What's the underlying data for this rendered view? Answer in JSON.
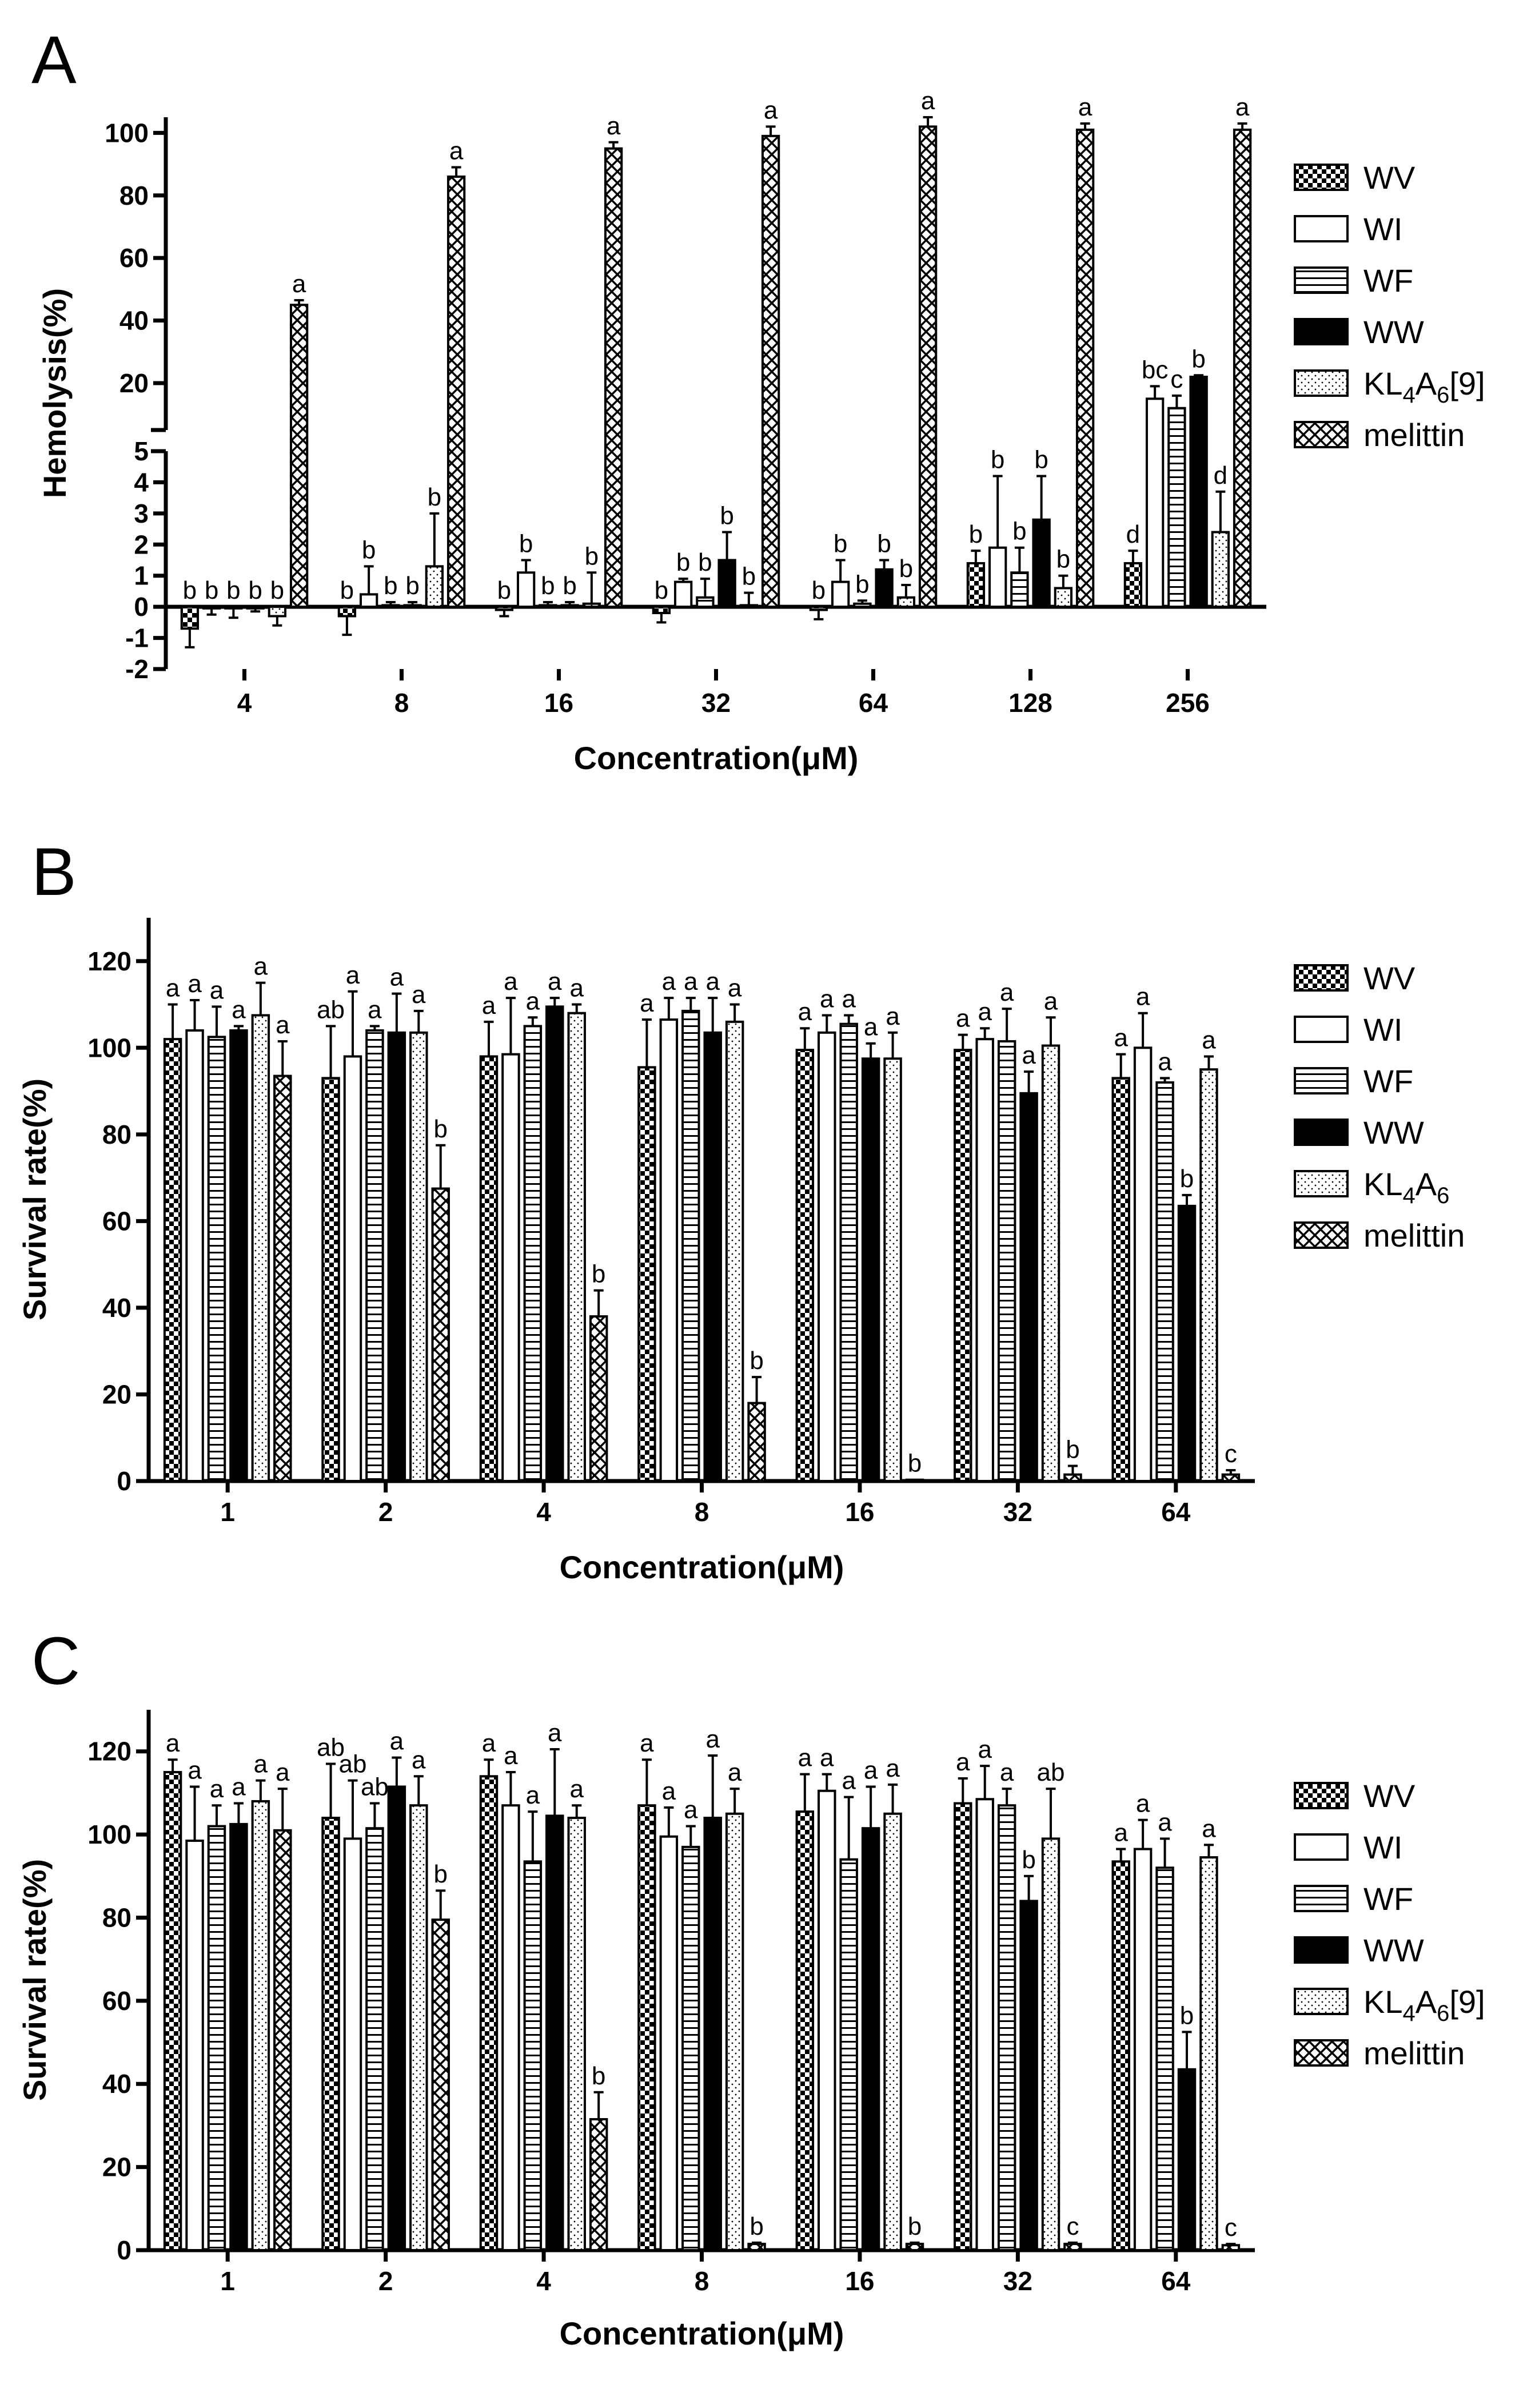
{
  "chart_data": [
    {
      "type": "bar",
      "panel": "A",
      "title": "",
      "xlabel": "Concentration(μM)",
      "ylabel": "Hemolysis(%)",
      "categories": [
        "4",
        "8",
        "16",
        "32",
        "64",
        "128",
        "256"
      ],
      "ylim": [
        -2,
        105
      ],
      "broken_axis": {
        "lower": [
          -2,
          5
        ],
        "upper": [
          5,
          105
        ]
      },
      "lower_ticks": [
        "-2",
        "-1",
        "0",
        "1",
        "2",
        "3",
        "4",
        "5"
      ],
      "upper_ticks": [
        "20",
        "40",
        "60",
        "80",
        "100"
      ],
      "legend_position": "right",
      "series": [
        {
          "name": "WV",
          "pattern": "checker",
          "values": [
            -0.7,
            -0.3,
            -0.1,
            -0.2,
            -0.1,
            1.4,
            1.4
          ],
          "errors": [
            0.6,
            0.6,
            0.2,
            0.3,
            0.3,
            0.4,
            0.4
          ],
          "labels": [
            "b",
            "b",
            "b",
            "b",
            "b",
            "b",
            "d"
          ]
        },
        {
          "name": "WI",
          "pattern": "open",
          "values": [
            -0.05,
            0.4,
            1.1,
            0.8,
            0.8,
            1.9,
            15
          ],
          "errors": [
            0.2,
            0.9,
            0.4,
            0.1,
            0.7,
            2.3,
            4
          ],
          "labels": [
            "b",
            "b",
            "b",
            "b",
            "b",
            "b",
            "bc"
          ]
        },
        {
          "name": "WF",
          "pattern": "hlines",
          "values": [
            -0.05,
            0.05,
            0.05,
            0.3,
            0.1,
            1.1,
            12
          ],
          "errors": [
            0.3,
            0.1,
            0.1,
            0.6,
            0.1,
            0.8,
            4
          ],
          "labels": [
            "b",
            "b",
            "b",
            "b",
            "b",
            "b",
            "c"
          ]
        },
        {
          "name": "WW",
          "pattern": "solid",
          "values": [
            -0.05,
            0.05,
            0.05,
            1.5,
            1.2,
            2.8,
            22
          ],
          "errors": [
            0.1,
            0.1,
            0.1,
            0.9,
            0.3,
            1.4,
            0.5
          ],
          "labels": [
            "b",
            "b",
            "b",
            "b",
            "b",
            "b",
            "b"
          ]
        },
        {
          "name": "KL4A6[9]",
          "pattern": "dots",
          "values": [
            -0.3,
            1.3,
            0.1,
            0.05,
            0.3,
            0.6,
            2.4
          ],
          "errors": [
            0.3,
            1.7,
            1.0,
            0.4,
            0.4,
            0.4,
            1.3
          ],
          "labels": [
            "b",
            "b",
            "b",
            "b",
            "b",
            "b",
            "d"
          ]
        },
        {
          "name": "melittin",
          "pattern": "crosshatch",
          "values": [
            45,
            86,
            95,
            99,
            102,
            101,
            101
          ],
          "errors": [
            1.5,
            3,
            2,
            3,
            3,
            2,
            2
          ],
          "labels": [
            "a",
            "a",
            "a",
            "a",
            "a",
            "a",
            "a"
          ]
        }
      ]
    },
    {
      "type": "bar",
      "panel": "B",
      "title": "",
      "xlabel": "Concentration(μM)",
      "ylabel": "Survival rate(%)",
      "categories": [
        "1",
        "2",
        "4",
        "8",
        "16",
        "32",
        "64"
      ],
      "ylim": [
        0,
        130
      ],
      "yticks": [
        "0",
        "20",
        "40",
        "60",
        "80",
        "100",
        "120"
      ],
      "legend_position": "right",
      "series": [
        {
          "name": "WV",
          "pattern": "checker",
          "values": [
            102,
            93,
            98,
            95.5,
            99.5,
            99.5,
            93
          ],
          "errors": [
            8,
            12,
            8,
            11,
            5,
            3.5,
            5.5
          ],
          "labels": [
            "a",
            "ab",
            "a",
            "a",
            "a",
            "a",
            "a"
          ]
        },
        {
          "name": "WI",
          "pattern": "open",
          "values": [
            104,
            98,
            98.5,
            106.5,
            103.5,
            102,
            100
          ],
          "errors": [
            7,
            15,
            13,
            5,
            4,
            2.5,
            8
          ],
          "labels": [
            "a",
            "a",
            "a",
            "a",
            "a",
            "a",
            "a"
          ]
        },
        {
          "name": "WF",
          "pattern": "hlines",
          "values": [
            102.5,
            104,
            105,
            108.5,
            105.5,
            101.5,
            92
          ],
          "errors": [
            7,
            1,
            2,
            3,
            2,
            7.5,
            1
          ],
          "labels": [
            "a",
            "a",
            "a",
            "a",
            "a",
            "a",
            "a"
          ]
        },
        {
          "name": "WW",
          "pattern": "solid",
          "values": [
            104,
            103.5,
            109.5,
            103.5,
            97.5,
            89.5,
            63.5
          ],
          "errors": [
            1,
            9,
            2,
            8,
            3.5,
            5,
            2.5
          ],
          "labels": [
            "a",
            "a",
            "a",
            "a",
            "a",
            "a",
            "b"
          ]
        },
        {
          "name": "KL4A6",
          "pattern": "dots",
          "values": [
            107.5,
            103.5,
            108,
            106,
            97.5,
            100.5,
            95
          ],
          "errors": [
            7.5,
            5,
            2,
            4,
            6,
            6.5,
            3
          ],
          "labels": [
            "a",
            "a",
            "a",
            "a",
            "a",
            "a",
            "a"
          ]
        },
        {
          "name": "melittin",
          "pattern": "crosshatch",
          "values": [
            93.5,
            67.5,
            38,
            18,
            0.3,
            1.5,
            1.5
          ],
          "errors": [
            8,
            10,
            6,
            6,
            0,
            2,
            1
          ],
          "labels": [
            "a",
            "b",
            "b",
            "b",
            "b",
            "b",
            "c"
          ]
        }
      ]
    },
    {
      "type": "bar",
      "panel": "C",
      "title": "",
      "xlabel": "Concentration(μM)",
      "ylabel": "Survival rate(%)",
      "categories": [
        "1",
        "2",
        "4",
        "8",
        "16",
        "32",
        "64"
      ],
      "ylim": [
        0,
        130
      ],
      "yticks": [
        "0",
        "20",
        "40",
        "60",
        "80",
        "100",
        "120"
      ],
      "legend_position": "right",
      "series": [
        {
          "name": "WV",
          "pattern": "checker",
          "values": [
            115,
            104,
            114,
            107,
            105.5,
            107.5,
            93.5
          ],
          "errors": [
            3,
            13,
            4,
            11,
            9,
            6,
            3
          ],
          "labels": [
            "a",
            "ab",
            "a",
            "a",
            "a",
            "a",
            "a"
          ]
        },
        {
          "name": "WI",
          "pattern": "open",
          "values": [
            98.5,
            99,
            107,
            99.5,
            110.5,
            108.5,
            96.5
          ],
          "errors": [
            13,
            14,
            8,
            7,
            4,
            8,
            7
          ],
          "labels": [
            "a",
            "ab",
            "a",
            "a",
            "a",
            "a",
            "a"
          ]
        },
        {
          "name": "WF",
          "pattern": "hlines",
          "values": [
            102,
            101.5,
            93.5,
            97,
            94,
            107,
            92
          ],
          "errors": [
            5,
            6,
            12,
            5,
            15,
            4,
            7
          ],
          "labels": [
            "a",
            "ab",
            "a",
            "a",
            "a",
            "a",
            "a"
          ]
        },
        {
          "name": "WW",
          "pattern": "solid",
          "values": [
            102.5,
            111.5,
            104.5,
            104,
            101.5,
            84,
            43.5
          ],
          "errors": [
            5,
            7,
            16,
            15,
            10,
            6,
            9
          ],
          "labels": [
            "a",
            "a",
            "a",
            "a",
            "a",
            "b",
            "b"
          ]
        },
        {
          "name": "KL4A6[9]",
          "pattern": "dots",
          "values": [
            108,
            107,
            104,
            105,
            105,
            99,
            94.5
          ],
          "errors": [
            5,
            7,
            3,
            6,
            7,
            12,
            3
          ],
          "labels": [
            "a",
            "a",
            "a",
            "a",
            "a",
            "ab",
            "a"
          ]
        },
        {
          "name": "melittin",
          "pattern": "crosshatch",
          "values": [
            101,
            79.5,
            31.5,
            1.5,
            1.5,
            1.5,
            1.2
          ],
          "errors": [
            10,
            7,
            6.5,
            0.3,
            0.3,
            0.3,
            0.3
          ],
          "labels": [
            "a",
            "b",
            "b",
            "b",
            "b",
            "c",
            "c"
          ]
        }
      ]
    }
  ]
}
